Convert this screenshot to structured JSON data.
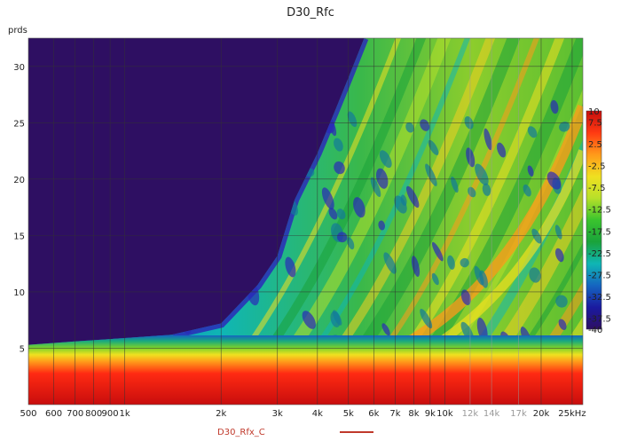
{
  "chart_data": {
    "type": "heatmap",
    "title": "D30_Rfc",
    "ylabel": "prds",
    "xlabel": "",
    "x_scale": "log",
    "xlim_hz": [
      500,
      27000
    ],
    "ylim": [
      0,
      32.5
    ],
    "grid": true,
    "x_ticks": [
      {
        "value": 500,
        "label": "500",
        "style": "major"
      },
      {
        "value": 600,
        "label": "600",
        "style": "major"
      },
      {
        "value": 700,
        "label": "700",
        "style": "major"
      },
      {
        "value": 800,
        "label": "800",
        "style": "major"
      },
      {
        "value": 900,
        "label": "900",
        "style": "major"
      },
      {
        "value": 1000,
        "label": "1k",
        "style": "major"
      },
      {
        "value": 2000,
        "label": "2k",
        "style": "major"
      },
      {
        "value": 3000,
        "label": "3k",
        "style": "major"
      },
      {
        "value": 4000,
        "label": "4k",
        "style": "major"
      },
      {
        "value": 5000,
        "label": "5k",
        "style": "major"
      },
      {
        "value": 6000,
        "label": "6k",
        "style": "major"
      },
      {
        "value": 7000,
        "label": "7k",
        "style": "major"
      },
      {
        "value": 8000,
        "label": "8k",
        "style": "major"
      },
      {
        "value": 9000,
        "label": "9k",
        "style": "major"
      },
      {
        "value": 10000,
        "label": "10k",
        "style": "major"
      },
      {
        "value": 12000,
        "label": "12k",
        "style": "minor"
      },
      {
        "value": 14000,
        "label": "14k",
        "style": "minor"
      },
      {
        "value": 17000,
        "label": "17k",
        "style": "minor"
      },
      {
        "value": 20000,
        "label": "20k",
        "style": "major"
      },
      {
        "value": 25000,
        "label": "25kHz",
        "style": "major"
      }
    ],
    "y_ticks": [
      {
        "value": 5,
        "label": "5"
      },
      {
        "value": 10,
        "label": "10"
      },
      {
        "value": 15,
        "label": "15"
      },
      {
        "value": 20,
        "label": "20"
      },
      {
        "value": 25,
        "label": "25"
      },
      {
        "value": 30,
        "label": "30"
      }
    ],
    "colorbar": {
      "range": [
        -40,
        10
      ],
      "ticks": [
        {
          "value": 10,
          "label": "10"
        },
        {
          "value": 7.5,
          "label": "7.5"
        },
        {
          "value": 2.5,
          "label": "2.5"
        },
        {
          "value": -2.5,
          "label": "-2.5"
        },
        {
          "value": -7.5,
          "label": "-7.5"
        },
        {
          "value": -12.5,
          "label": "-12.5"
        },
        {
          "value": -17.5,
          "label": "-17.5"
        },
        {
          "value": -22.5,
          "label": "-22.5"
        },
        {
          "value": -27.5,
          "label": "-27.5"
        },
        {
          "value": -32.5,
          "label": "-32.5"
        },
        {
          "value": -37.5,
          "label": "-37.5"
        },
        {
          "value": -40,
          "label": "-40"
        }
      ],
      "colors": [
        "#2e0f62",
        "#1a1aa0",
        "#1565c0",
        "#0fb6b4",
        "#1aa33a",
        "#3ac42e",
        "#b7e02a",
        "#f0e020",
        "#ff9a1a",
        "#ff3a12",
        "#c80d0d"
      ]
    },
    "envelope": [
      {
        "hz": 500,
        "prds": 5.3
      },
      {
        "hz": 700,
        "prds": 5.6
      },
      {
        "hz": 1000,
        "prds": 5.9
      },
      {
        "hz": 1400,
        "prds": 6.2
      },
      {
        "hz": 2000,
        "prds": 7.2
      },
      {
        "hz": 2600,
        "prds": 10.6
      },
      {
        "hz": 3000,
        "prds": 13.2
      },
      {
        "hz": 3400,
        "prds": 18.2
      },
      {
        "hz": 4000,
        "prds": 22.3
      },
      {
        "hz": 4500,
        "prds": 25.8
      },
      {
        "hz": 5000,
        "prds": 29.0
      },
      {
        "hz": 5600,
        "prds": 32.5
      }
    ],
    "series": [
      {
        "name": "D30_Rfx_C",
        "color": "#c0392b"
      }
    ]
  }
}
